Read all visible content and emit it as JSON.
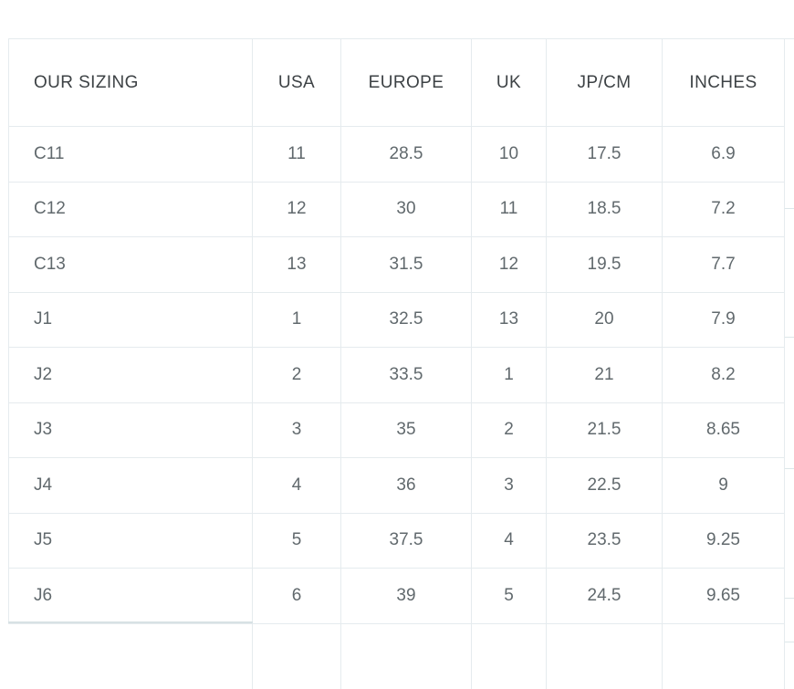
{
  "table": {
    "columns": [
      {
        "key": "our-sizing",
        "label": "OUR SIZING"
      },
      {
        "key": "usa",
        "label": "USA"
      },
      {
        "key": "europe",
        "label": "EUROPE"
      },
      {
        "key": "uk",
        "label": "UK"
      },
      {
        "key": "jp-cm",
        "label": "JP/CM"
      },
      {
        "key": "inches",
        "label": "INCHES"
      }
    ],
    "rows": [
      [
        "C11",
        "11",
        "28.5",
        "10",
        "17.5",
        "6.9"
      ],
      [
        "C12",
        "12",
        "30",
        "11",
        "18.5",
        "7.2"
      ],
      [
        "C13",
        "13",
        "31.5",
        "12",
        "19.5",
        "7.7"
      ],
      [
        "J1",
        "1",
        "32.5",
        "13",
        "20",
        "7.9"
      ],
      [
        "J2",
        "2",
        "33.5",
        "1",
        "21",
        "8.2"
      ],
      [
        "J3",
        "3",
        "35",
        "2",
        "21.5",
        "8.65"
      ],
      [
        "J4",
        "4",
        "36",
        "3",
        "22.5",
        "9"
      ],
      [
        "J5",
        "5",
        "37.5",
        "4",
        "23.5",
        "9.25"
      ],
      [
        "J6",
        "6",
        "39",
        "5",
        "24.5",
        "9.65"
      ]
    ]
  },
  "colors": {
    "background": "#ffffff",
    "border": "#e5ebee",
    "border_strong": "#dde7ea",
    "header_text": "#3d4245",
    "cell_text": "#61696d",
    "first_column_divider": "#d7e1e4"
  }
}
